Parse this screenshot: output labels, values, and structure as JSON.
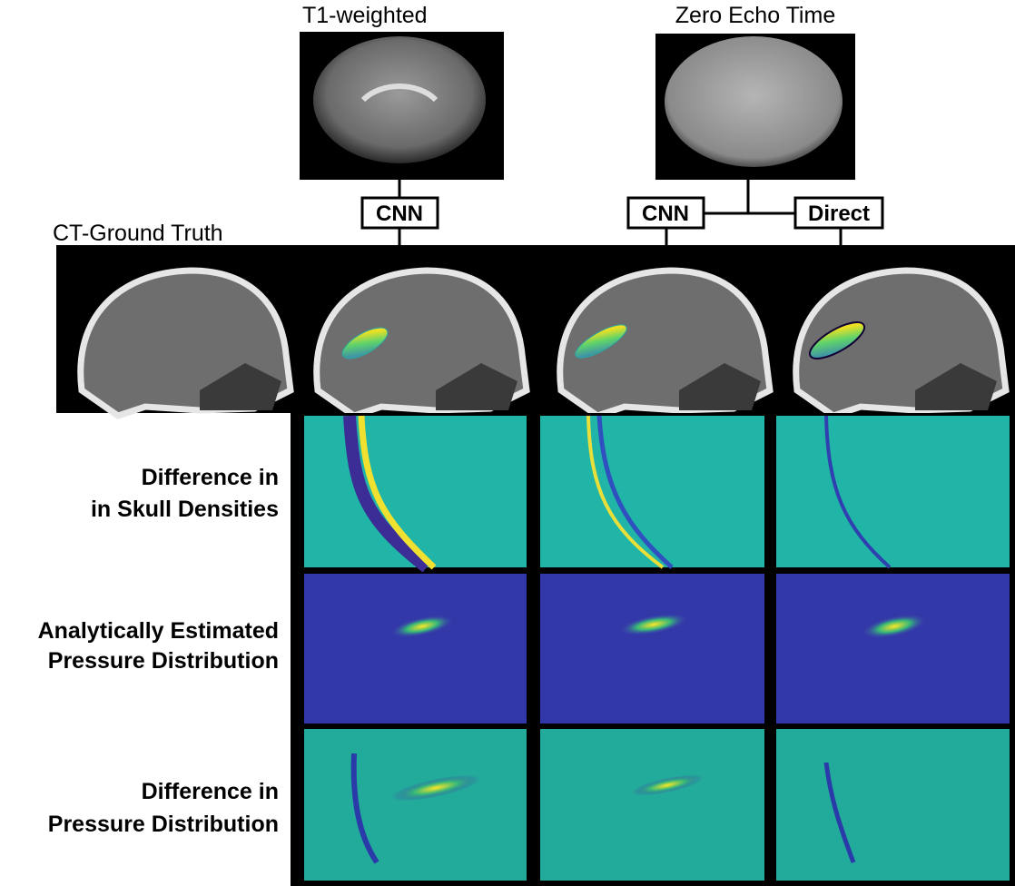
{
  "inputs": [
    {
      "label": "T1-weighted"
    },
    {
      "label": "Zero Echo Time"
    }
  ],
  "methods": [
    "CNN",
    "CNN",
    "Direct"
  ],
  "reference": {
    "label": "CT-Ground Truth"
  },
  "rows": [
    {
      "label": [
        "Difference in",
        "in Skull Densities"
      ]
    },
    {
      "label": [
        "Analytically Estimated",
        "Pressure Distribution"
      ]
    },
    {
      "label": [
        "Difference in",
        "Pressure Distribution"
      ]
    }
  ]
}
